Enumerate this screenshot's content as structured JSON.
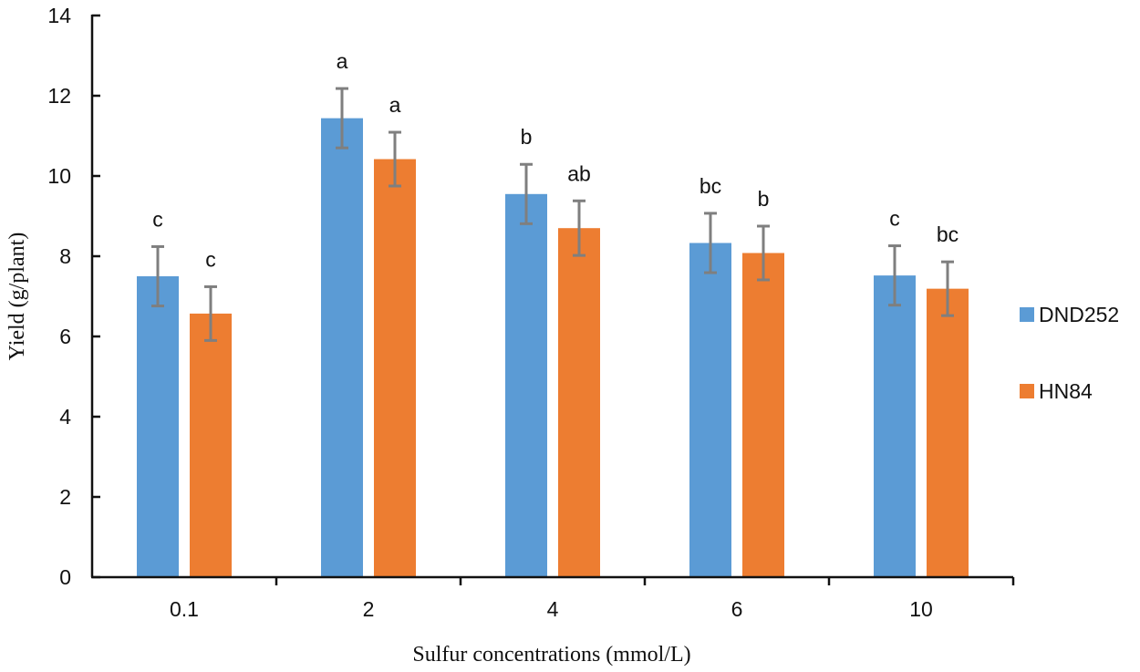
{
  "chart_data": {
    "type": "bar",
    "title": "",
    "xlabel": "Sulfur concentrations (mmol/L)",
    "ylabel": "Yield (g/plant)",
    "ylim": [
      0,
      14
    ],
    "yticks": [
      "0",
      "2",
      "4",
      "6",
      "8",
      "10",
      "12",
      "14"
    ],
    "categories": [
      "0.1",
      "2",
      "4",
      "6",
      "10"
    ],
    "grid": false,
    "legend_position": "right",
    "series": [
      {
        "name": "DND252",
        "color": "#5B9BD5",
        "values": [
          7.5,
          11.44,
          9.55,
          8.33,
          7.52
        ],
        "errors": [
          0.74,
          0.74,
          0.74,
          0.74,
          0.74
        ],
        "letters": [
          "c",
          "a",
          "b",
          "bc",
          "c"
        ]
      },
      {
        "name": "HN84",
        "color": "#ED7D31",
        "values": [
          6.57,
          10.42,
          8.7,
          8.08,
          7.19
        ],
        "errors": [
          0.67,
          0.67,
          0.68,
          0.67,
          0.67
        ],
        "letters": [
          "c",
          "a",
          "ab",
          "b",
          "bc"
        ]
      }
    ],
    "error_bar_color": "#7F7F7F"
  }
}
